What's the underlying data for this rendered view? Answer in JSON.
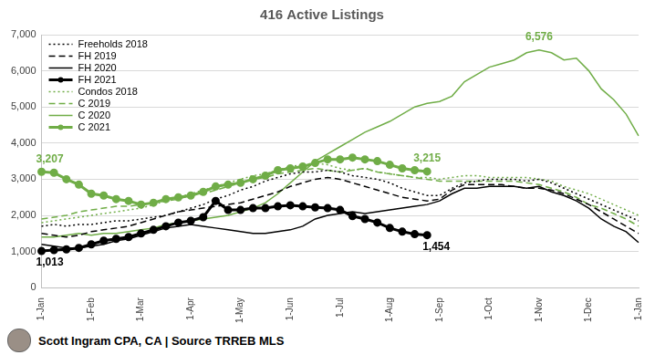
{
  "chart_data": {
    "type": "line",
    "title": "416 Active Listings",
    "caption": "Scott Ingram CPA, CA | Source TRREB MLS",
    "categories": [
      "1-Jan",
      null,
      null,
      null,
      "1-Feb",
      null,
      null,
      null,
      "1-Mar",
      null,
      null,
      null,
      "1-Apr",
      null,
      null,
      null,
      "1-May",
      null,
      null,
      null,
      "1-Jun",
      null,
      null,
      null,
      "1-Jul",
      null,
      null,
      null,
      "1-Aug",
      null,
      null,
      null,
      "1-Sep",
      null,
      null,
      null,
      "1-Oct",
      null,
      null,
      null,
      "1-Nov",
      null,
      null,
      null,
      "1-Dec",
      null,
      null,
      null,
      "1-Jan"
    ],
    "ylim": [
      0,
      7000
    ],
    "yticks": [
      0,
      {
        "value": 1000,
        "label": "1,000"
      },
      {
        "value": 2000,
        "label": "2,000"
      },
      {
        "value": 3000,
        "label": "3,000"
      },
      {
        "value": 4000,
        "label": "4,000"
      },
      {
        "value": 5000,
        "label": "5,000"
      },
      {
        "value": 6000,
        "label": "6,000"
      },
      {
        "value": 7000,
        "label": "7,000"
      }
    ],
    "grid": true,
    "legend": "upper left",
    "series": [
      {
        "name": "Freeholds 2018",
        "color": "#000000",
        "line_style": "dotted",
        "marker": "none",
        "values": [
          1700,
          1750,
          1700,
          1750,
          1750,
          1800,
          1850,
          1850,
          1900,
          1950,
          2000,
          2100,
          2200,
          2300,
          2450,
          2550,
          2700,
          2800,
          2950,
          3050,
          3150,
          3200,
          3200,
          3250,
          3200,
          3100,
          3050,
          3000,
          2900,
          2750,
          2650,
          2550,
          2550,
          2750,
          2900,
          2950,
          3000,
          3000,
          3000,
          2950,
          3000,
          2900,
          2750,
          2600,
          2450,
          2300,
          2150,
          2000,
          1850
        ]
      },
      {
        "name": "FH 2019",
        "color": "#000000",
        "line_style": "dashed",
        "marker": "none",
        "values": [
          1500,
          1450,
          1400,
          1450,
          1550,
          1600,
          1650,
          1700,
          1800,
          1900,
          2000,
          2100,
          2150,
          2200,
          2250,
          2300,
          2350,
          2450,
          2550,
          2650,
          2800,
          2900,
          3000,
          3050,
          3000,
          2900,
          2800,
          2700,
          2600,
          2500,
          2450,
          2400,
          2450,
          2700,
          2850,
          2850,
          2850,
          2850,
          2800,
          2750,
          2750,
          2700,
          2600,
          2450,
          2300,
          2100,
          1900,
          1700,
          1500
        ]
      },
      {
        "name": "FH 2020",
        "color": "#000000",
        "line_style": "solid",
        "marker": "none",
        "values": [
          1200,
          1150,
          1100,
          1100,
          1150,
          1200,
          1300,
          1350,
          1450,
          1550,
          1650,
          1700,
          1750,
          1700,
          1650,
          1600,
          1550,
          1500,
          1500,
          1550,
          1600,
          1700,
          1900,
          2000,
          2050,
          2100,
          2050,
          2100,
          2150,
          2200,
          2250,
          2300,
          2400,
          2600,
          2750,
          2750,
          2800,
          2800,
          2800,
          2750,
          2800,
          2650,
          2550,
          2400,
          2200,
          1900,
          1700,
          1550,
          1250
        ]
      },
      {
        "name": "FH 2021",
        "color": "#000000",
        "line_style": "solid",
        "marker": "circle",
        "values": [
          1013,
          1040,
          1060,
          1100,
          1200,
          1300,
          1350,
          1400,
          1500,
          1600,
          1700,
          1800,
          1850,
          1950,
          2400,
          2150,
          2150,
          2200,
          2200,
          2250,
          2280,
          2250,
          2220,
          2200,
          2150,
          1980,
          1900,
          1800,
          1650,
          1550,
          1480,
          1454,
          null,
          null,
          null,
          null,
          null,
          null,
          null,
          null,
          null,
          null,
          null,
          null,
          null,
          null,
          null,
          null,
          null
        ],
        "value_labels": [
          "1,013",
          null,
          null,
          null,
          null,
          null,
          null,
          null,
          null,
          null,
          null,
          null,
          null,
          null,
          null,
          null,
          null,
          null,
          null,
          null,
          null,
          null,
          null,
          null,
          null,
          null,
          null,
          null,
          null,
          null,
          null,
          "1,454",
          null,
          null,
          null,
          null,
          null,
          null,
          null,
          null,
          null,
          null,
          null,
          null,
          null,
          null,
          null,
          null,
          null
        ]
      },
      {
        "name": "Condos 2018",
        "color": "#70ad47",
        "line_style": "dotted",
        "marker": "none",
        "values": [
          1800,
          1850,
          1900,
          1950,
          2000,
          2050,
          2100,
          2150,
          2200,
          2300,
          2400,
          2500,
          2600,
          2700,
          2800,
          2900,
          3000,
          3100,
          3150,
          3250,
          3350,
          3400,
          3450,
          3400,
          3300,
          3250,
          3300,
          3200,
          3150,
          3100,
          3050,
          3050,
          3000,
          3050,
          3100,
          3100,
          3050,
          3050,
          3050,
          3050,
          3000,
          2950,
          2800,
          2700,
          2600,
          2450,
          2300,
          2150,
          2000
        ]
      },
      {
        "name": "C 2019",
        "color": "#70ad47",
        "line_style": "dashed",
        "marker": "none",
        "values": [
          1900,
          1950,
          2000,
          2100,
          2150,
          2200,
          2250,
          2250,
          2300,
          2350,
          2400,
          2450,
          2550,
          2600,
          2700,
          2800,
          2900,
          3000,
          3050,
          3150,
          3200,
          3250,
          3300,
          3250,
          3200,
          3250,
          3300,
          3200,
          3150,
          3100,
          3050,
          3000,
          2950,
          2950,
          2950,
          2950,
          2950,
          2950,
          2950,
          2900,
          2850,
          2750,
          2650,
          2500,
          2300,
          2200,
          2050,
          1900,
          1700
        ]
      },
      {
        "name": "C 2020",
        "color": "#70ad47",
        "line_style": "solid",
        "marker": "none",
        "values": [
          1400,
          1400,
          1450,
          1500,
          1450,
          1500,
          1500,
          1550,
          1600,
          1650,
          1750,
          1800,
          1850,
          1900,
          1950,
          2000,
          2100,
          2200,
          2350,
          2600,
          2900,
          3200,
          3500,
          3700,
          3900,
          4100,
          4300,
          4450,
          4600,
          4800,
          5000,
          5100,
          5150,
          5300,
          5700,
          5900,
          6100,
          6200,
          6300,
          6500,
          6576,
          6500,
          6300,
          6350,
          6000,
          5500,
          5200,
          4800,
          4200
        ],
        "value_labels": [
          null,
          null,
          null,
          null,
          null,
          null,
          null,
          null,
          null,
          null,
          null,
          null,
          null,
          null,
          null,
          null,
          null,
          null,
          null,
          null,
          null,
          null,
          null,
          null,
          null,
          null,
          null,
          null,
          null,
          null,
          null,
          null,
          null,
          null,
          null,
          null,
          null,
          null,
          null,
          null,
          "6,576",
          null,
          null,
          null,
          null,
          null,
          null,
          null,
          null
        ]
      },
      {
        "name": "C 2021",
        "color": "#70ad47",
        "line_style": "solid",
        "marker": "circle",
        "values": [
          3207,
          3180,
          3000,
          2850,
          2600,
          2550,
          2450,
          2400,
          2300,
          2350,
          2450,
          2500,
          2550,
          2650,
          2800,
          2850,
          2900,
          3000,
          3100,
          3250,
          3300,
          3350,
          3450,
          3550,
          3550,
          3600,
          3550,
          3500,
          3400,
          3300,
          3250,
          3215,
          null,
          null,
          null,
          null,
          null,
          null,
          null,
          null,
          null,
          null,
          null,
          null,
          null,
          null,
          null,
          null,
          null
        ],
        "value_labels": [
          "3,207",
          null,
          null,
          null,
          null,
          null,
          null,
          null,
          null,
          null,
          null,
          null,
          null,
          null,
          null,
          null,
          null,
          null,
          null,
          null,
          null,
          null,
          null,
          null,
          null,
          null,
          null,
          null,
          null,
          null,
          null,
          "3,215",
          null,
          null,
          null,
          null,
          null,
          null,
          null,
          null,
          null,
          null,
          null,
          null,
          null,
          null,
          null,
          null,
          null
        ]
      }
    ]
  }
}
